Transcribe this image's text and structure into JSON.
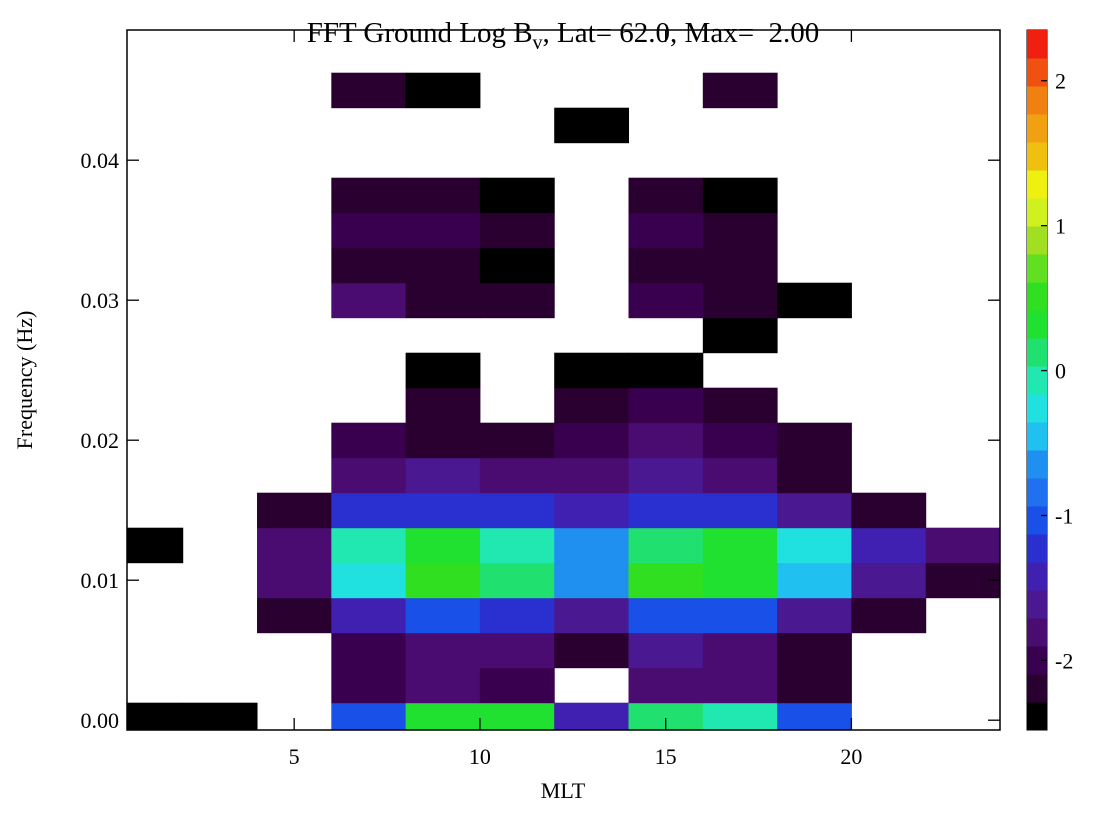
{
  "chart_data": {
    "type": "contour",
    "title": [
      "FFT Ground Log B",
      "v",
      ", Lat= 62.0, Max=  2.00"
    ],
    "x_label": "MLT",
    "y_label": "Frequency (Hz)",
    "xlim": [
      0.5,
      24
    ],
    "ylim": [
      -0.0007,
      0.0493
    ],
    "xticks": [
      5,
      10,
      15,
      20
    ],
    "yticks": [
      {
        "value": 0,
        "label": "0.00"
      },
      0.01,
      0.02,
      0.03,
      0.04
    ],
    "x": [
      1,
      3,
      5,
      7,
      9,
      11,
      13,
      15,
      17,
      19,
      21,
      23
    ],
    "y": [
      0,
      0.0025,
      0.005,
      0.0075,
      0.01,
      0.0125,
      0.015,
      0.0175,
      0.02,
      0.0225,
      0.025,
      0.0275,
      0.03,
      0.0325,
      0.035,
      0.0375,
      0.04,
      0.0425,
      0.045,
      0.0475
    ],
    "z": [
      [
        -2.3,
        -2.3,
        null,
        -1.0,
        0.3,
        0.3,
        -1.5,
        0.2,
        0.0,
        -1.0,
        null,
        null
      ],
      [
        null,
        null,
        null,
        -2.0,
        -1.8,
        -2.0,
        null,
        -1.9,
        -1.9,
        -2.2,
        null,
        null
      ],
      [
        null,
        null,
        null,
        -2.0,
        -1.8,
        -1.8,
        -2.1,
        -1.7,
        -1.8,
        -2.2,
        null,
        null
      ],
      [
        null,
        null,
        -2.2,
        -1.4,
        -1.0,
        -1.2,
        -1.6,
        -1.0,
        -1.1,
        -1.6,
        -2.2,
        null
      ],
      [
        null,
        null,
        -1.9,
        -0.2,
        0.6,
        0.2,
        -0.7,
        0.6,
        0.4,
        -0.4,
        -1.6,
        -2.1
      ],
      [
        -2.4,
        null,
        -1.8,
        -0.1,
        0.3,
        0.0,
        -0.6,
        0.2,
        0.3,
        -0.2,
        -1.5,
        -1.9
      ],
      [
        null,
        null,
        -2.2,
        -1.2,
        -1.2,
        -1.3,
        -1.4,
        -1.2,
        -1.3,
        -1.6,
        -2.2,
        null
      ],
      [
        null,
        null,
        null,
        -1.9,
        -1.7,
        -1.8,
        -1.8,
        -1.6,
        -1.9,
        -2.1,
        null,
        null
      ],
      [
        null,
        null,
        null,
        -2.0,
        -2.2,
        -2.2,
        -2.0,
        -1.8,
        -2.0,
        -2.2,
        null,
        null
      ],
      [
        null,
        null,
        null,
        null,
        -2.2,
        null,
        -2.2,
        -2.0,
        -2.2,
        null,
        null,
        null
      ],
      [
        null,
        null,
        null,
        null,
        -2.4,
        null,
        -2.4,
        -2.3,
        null,
        null,
        null,
        null
      ],
      [
        null,
        null,
        null,
        null,
        null,
        null,
        null,
        null,
        -2.4,
        null,
        null,
        null
      ],
      [
        null,
        null,
        null,
        -1.9,
        -2.1,
        -2.2,
        null,
        -2.0,
        -2.2,
        -2.3,
        null,
        null
      ],
      [
        null,
        null,
        null,
        -2.1,
        -2.1,
        -2.3,
        null,
        -2.1,
        -2.2,
        null,
        null,
        null
      ],
      [
        null,
        null,
        null,
        -2.0,
        -2.0,
        -2.2,
        null,
        -2.0,
        -2.2,
        null,
        null,
        null
      ],
      [
        null,
        null,
        null,
        -2.2,
        -2.1,
        -2.3,
        null,
        -2.1,
        -2.3,
        null,
        null,
        null
      ],
      [
        null,
        null,
        null,
        null,
        null,
        null,
        null,
        null,
        null,
        null,
        null,
        null
      ],
      [
        null,
        null,
        null,
        null,
        null,
        null,
        -2.4,
        null,
        null,
        null,
        null,
        null
      ],
      [
        null,
        null,
        null,
        -2.1,
        -2.4,
        null,
        null,
        null,
        -2.2,
        null,
        null,
        null
      ],
      [
        null,
        null,
        null,
        null,
        null,
        null,
        null,
        null,
        null,
        null,
        null,
        null
      ]
    ],
    "clim": [
      -2.48,
      2.35
    ],
    "cticks": [
      -2,
      -1,
      0,
      1,
      2
    ],
    "colors": [
      "#000000",
      "#2a0030",
      "#3a0050",
      "#4a0c70",
      "#4a1890",
      "#4020b0",
      "#2a30d0",
      "#1850e8",
      "#2070f0",
      "#2090f0",
      "#20c0f0",
      "#20e0e0",
      "#20e8b0",
      "#20e070",
      "#20e030",
      "#30e020",
      "#60e020",
      "#a0e020",
      "#d0f020",
      "#f0f010",
      "#f0c010",
      "#f0a010",
      "#f08010",
      "#f05010",
      "#f02010"
    ]
  }
}
